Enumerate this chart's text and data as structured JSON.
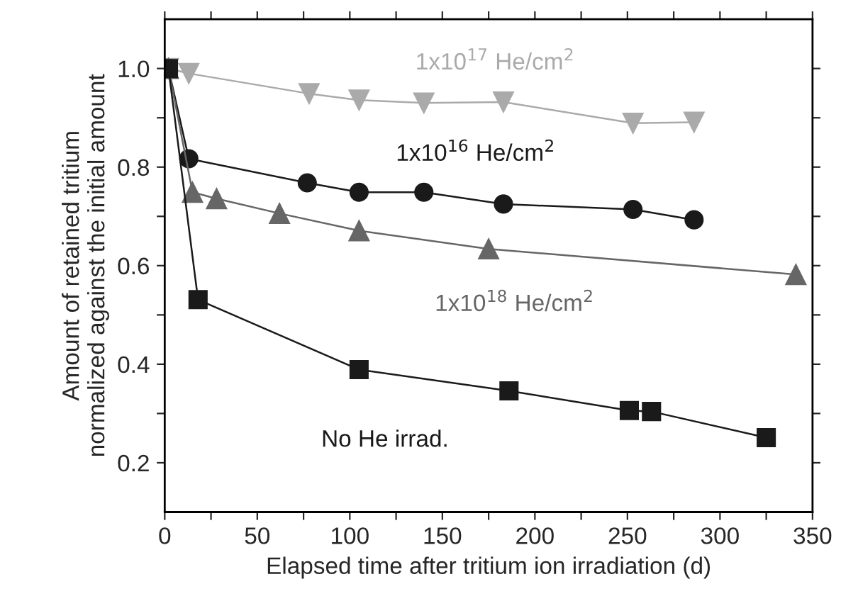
{
  "chart_data": {
    "type": "line",
    "xlabel": "Elapsed time after tritium ion irradiation (d)",
    "ylabel": "Amount of retained tritium\nnormalized against the initial amount",
    "xlim": [
      0,
      350
    ],
    "ylim": [
      0.1,
      1.1
    ],
    "xticks": [
      0,
      {
        "value": 25,
        "label": null
      },
      50,
      {
        "value": 75,
        "label": null
      },
      100,
      {
        "value": 125,
        "label": null
      },
      150,
      {
        "value": 175,
        "label": null
      },
      200,
      {
        "value": 225,
        "label": null
      },
      250,
      {
        "value": 275,
        "label": null
      },
      300,
      {
        "value": 325,
        "label": null
      },
      350
    ],
    "yticks": [
      {
        "value": 0.2,
        "label": "0.2"
      },
      {
        "value": 0.3,
        "label": null
      },
      {
        "value": 0.4,
        "label": "0.4"
      },
      {
        "value": 0.5,
        "label": null
      },
      {
        "value": 0.6,
        "label": "0.6"
      },
      {
        "value": 0.7,
        "label": null
      },
      {
        "value": 0.8,
        "label": "0.8"
      },
      {
        "value": 0.9,
        "label": null
      },
      {
        "value": 1.0,
        "label": "1.0"
      }
    ],
    "grid": false,
    "legend": false,
    "series": [
      {
        "name": "1x10$^{17}$ He/cm$^{2}$",
        "color": "#aaaaaa",
        "marker": "triangle_down",
        "x": [
          2,
          13,
          78,
          105,
          140,
          183,
          253,
          286
        ],
        "values": [
          1.0,
          0.99,
          0.949,
          0.936,
          0.93,
          0.932,
          0.889,
          0.891
        ]
      },
      {
        "name": "1x10$^{16}$ He/cm$^{2}$",
        "color": "#1a1a1a",
        "marker": "circle",
        "x": [
          2,
          13,
          77,
          105,
          140,
          183,
          253,
          286
        ],
        "values": [
          1.0,
          0.817,
          0.768,
          0.749,
          0.749,
          0.725,
          0.714,
          0.693
        ]
      },
      {
        "name": "1x10$^{18}$ He/cm$^{2}$",
        "color": "#666666",
        "marker": "triangle",
        "x": [
          2,
          15,
          28,
          62,
          105,
          175,
          341
        ],
        "values": [
          1.0,
          0.749,
          0.736,
          0.706,
          0.671,
          0.634,
          0.582
        ]
      },
      {
        "name": "No He irrad.",
        "color": "#1a1a1a",
        "marker": "square",
        "x": [
          2,
          18,
          105,
          186,
          251,
          263,
          325
        ],
        "values": [
          1.0,
          0.531,
          0.389,
          0.346,
          0.306,
          0.304,
          0.251
        ]
      }
    ]
  }
}
